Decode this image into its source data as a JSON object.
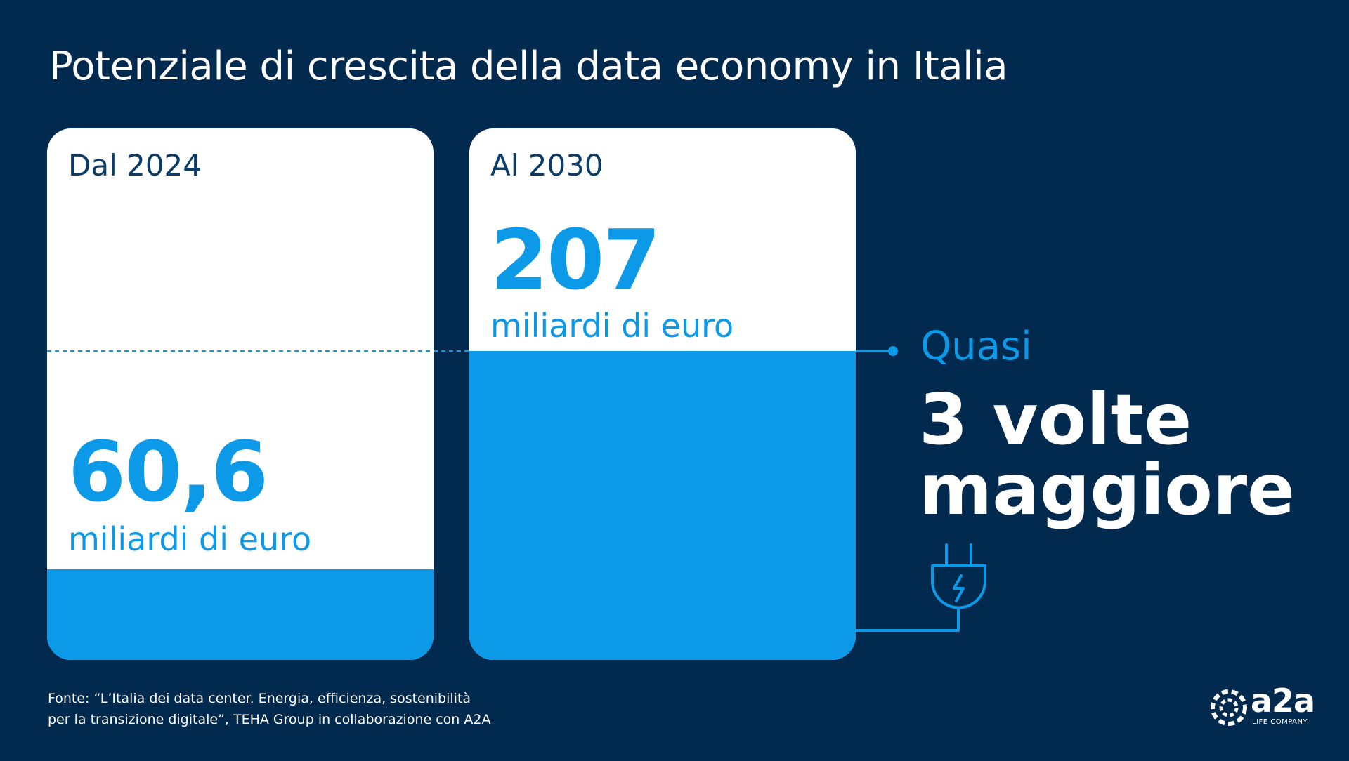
{
  "title": "Potenziale di crescita della data economy in Italia",
  "chart_data": {
    "type": "bar",
    "title": "Potenziale di crescita della data economy in Italia",
    "categories": [
      "Dal 2024",
      "Al 2030"
    ],
    "values": [
      60.6,
      207
    ],
    "value_labels": [
      "60,6",
      "207"
    ],
    "unit": "miliardi di euro",
    "ylim": [
      0,
      207
    ]
  },
  "comparison": {
    "label": "Quasi",
    "line1": "3 volte",
    "line2": "maggiore"
  },
  "source": {
    "line1": "Fonte: “L’Italia dei data center. Energia, efficienza, sostenibilità",
    "line2": "per la transizione digitale”, TEHA Group in collaborazione con A2A"
  },
  "logo": {
    "word": "a2a",
    "sub": "LIFE COMPANY"
  },
  "colors": {
    "background": "#022a4f",
    "accent": "#0c9ae8",
    "card": "#ffffff",
    "year_text": "#0b3c69"
  }
}
